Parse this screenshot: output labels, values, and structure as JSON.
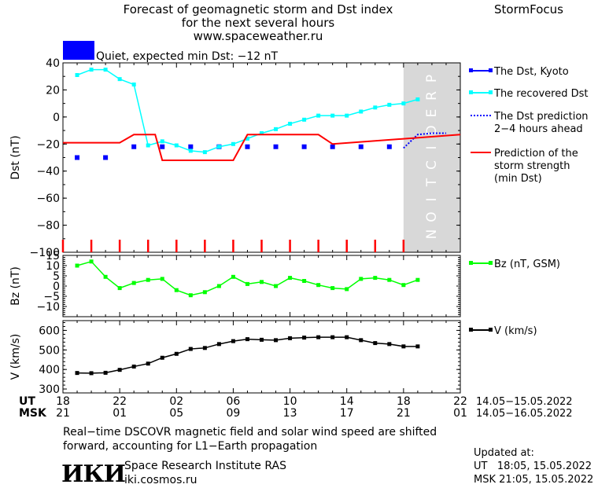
{
  "header": {
    "title_lines": [
      "Forecast of geomagnetic storm and Dst index",
      "for the next several hours",
      "www.spaceweather.ru"
    ],
    "brand": "StormFocus",
    "status_text": "Quiet, expected min Dst: −12 nT",
    "status_color": "#0000ff"
  },
  "time_axis": {
    "ut_label": "UT",
    "msk_label": "MSK",
    "ut_ticks": [
      "18",
      "22",
      "02",
      "06",
      "10",
      "14",
      "18",
      "22"
    ],
    "msk_ticks": [
      "21",
      "01",
      "05",
      "09",
      "13",
      "17",
      "21",
      "01"
    ],
    "ut_range": "14.05−15.05.2022",
    "msk_range": "14.05−16.05.2022"
  },
  "prediction_label": "PREDICTION",
  "chart_data": [
    {
      "type": "line",
      "panel": "dst",
      "ylabel": "Dst (nT)",
      "ylim": [
        -100,
        40
      ],
      "yticks": [
        "40",
        "20",
        "0",
        "−20",
        "−40",
        "−60",
        "−80",
        "−100"
      ],
      "x_unit": "hours since 18 UT 14.05.2022",
      "xlim": [
        0,
        28
      ],
      "series": [
        {
          "name": "The Dst, Kyoto",
          "color": "#0000ff",
          "style": "markers",
          "x": [
            1,
            3,
            5,
            7,
            9,
            11,
            13,
            15,
            17,
            19,
            21,
            23
          ],
          "values": [
            -30,
            -30,
            -22,
            -22,
            -22,
            -22,
            -22,
            -22,
            -22,
            -22,
            -22,
            -22
          ]
        },
        {
          "name": "The recovered Dst",
          "color": "#00ffff",
          "style": "line-markers",
          "x": [
            1,
            2,
            3,
            4,
            5,
            6,
            7,
            8,
            9,
            10,
            11,
            12,
            13,
            14,
            15,
            16,
            17,
            18,
            19,
            20,
            21,
            22,
            23,
            24,
            25
          ],
          "values": [
            31,
            35,
            35,
            28,
            24,
            -21,
            -18,
            -21,
            -25,
            -26,
            -22,
            -20,
            -16,
            -12,
            -9,
            -5,
            -2,
            1,
            1,
            1,
            4,
            7,
            9,
            10,
            13
          ]
        },
        {
          "name": "The Dst prediction\n2−4 hours ahead",
          "color": "#0000ff",
          "style": "dotted",
          "x": [
            24,
            25,
            26,
            27
          ],
          "values": [
            -23,
            -13,
            -12,
            -12
          ]
        },
        {
          "name": "Prediction of the\nstorm strength\n(min Dst)",
          "color": "#ff0000",
          "style": "step-line",
          "x": [
            0,
            3,
            4,
            5,
            6,
            6.5,
            7,
            8,
            10,
            12,
            13,
            15,
            16,
            18,
            19,
            28
          ],
          "values": [
            -19,
            -19,
            -19,
            -13,
            -13,
            -13,
            -32,
            -32,
            -32,
            -32,
            -13,
            -13,
            -13,
            -13,
            -20,
            -13
          ]
        }
      ],
      "kp_bars": {
        "color": "#ff0000",
        "x": [
          0,
          2,
          4,
          6,
          8,
          10,
          12,
          14,
          16,
          18,
          20,
          22,
          24
        ],
        "values": [
          -100,
          -100,
          -100,
          -100,
          -100,
          -100,
          -100,
          -100,
          -100,
          -100,
          -100,
          -100,
          -100
        ]
      }
    },
    {
      "type": "line",
      "panel": "bz",
      "ylabel": "Bz (nT)",
      "ylim": [
        -15,
        15
      ],
      "yticks": [
        "15",
        "10",
        "5",
        "0",
        "−5",
        "−10"
      ],
      "series": [
        {
          "name": "Bz (nT, GSM)",
          "color": "#00ff00",
          "x": [
            1,
            2,
            3,
            4,
            5,
            6,
            7,
            8,
            9,
            10,
            11,
            12,
            13,
            14,
            15,
            16,
            17,
            18,
            19,
            20,
            21,
            22,
            23,
            24,
            25
          ],
          "values": [
            10,
            12,
            4.5,
            -1,
            1.5,
            3,
            3.5,
            -2,
            -4.5,
            -3,
            0,
            4.5,
            1,
            2,
            0,
            4,
            2.5,
            0.5,
            -1,
            -1.5,
            3.5,
            4,
            3,
            0.5,
            3
          ]
        }
      ]
    },
    {
      "type": "line",
      "panel": "v",
      "ylabel": "V (km/s)",
      "ylim": [
        280,
        650
      ],
      "yticks": [
        "600",
        "500",
        "400",
        "300"
      ],
      "series": [
        {
          "name": "V (km/s)",
          "color": "#000000",
          "x": [
            1,
            2,
            3,
            4,
            5,
            6,
            7,
            8,
            9,
            10,
            11,
            12,
            13,
            14,
            15,
            16,
            17,
            18,
            19,
            20,
            21,
            22,
            23,
            24,
            25
          ],
          "values": [
            382,
            381,
            383,
            398,
            415,
            430,
            460,
            480,
            505,
            510,
            530,
            545,
            555,
            552,
            550,
            560,
            563,
            565,
            565,
            565,
            550,
            535,
            530,
            518,
            518
          ]
        }
      ]
    }
  ],
  "footer": {
    "note_lines": [
      "Real−time DSCOVR magnetic field and solar wind speed are shifted",
      "forward, accounting for L1−Earth propagation"
    ],
    "logo_text": "ИКИ",
    "institute": "Space Research Institute RAS",
    "site": "iki.cosmos.ru",
    "updated_label": "Updated at:",
    "updated_ut": "UT   18:05, 15.05.2022",
    "updated_msk": "MSK 21:05, 15.05.2022"
  }
}
